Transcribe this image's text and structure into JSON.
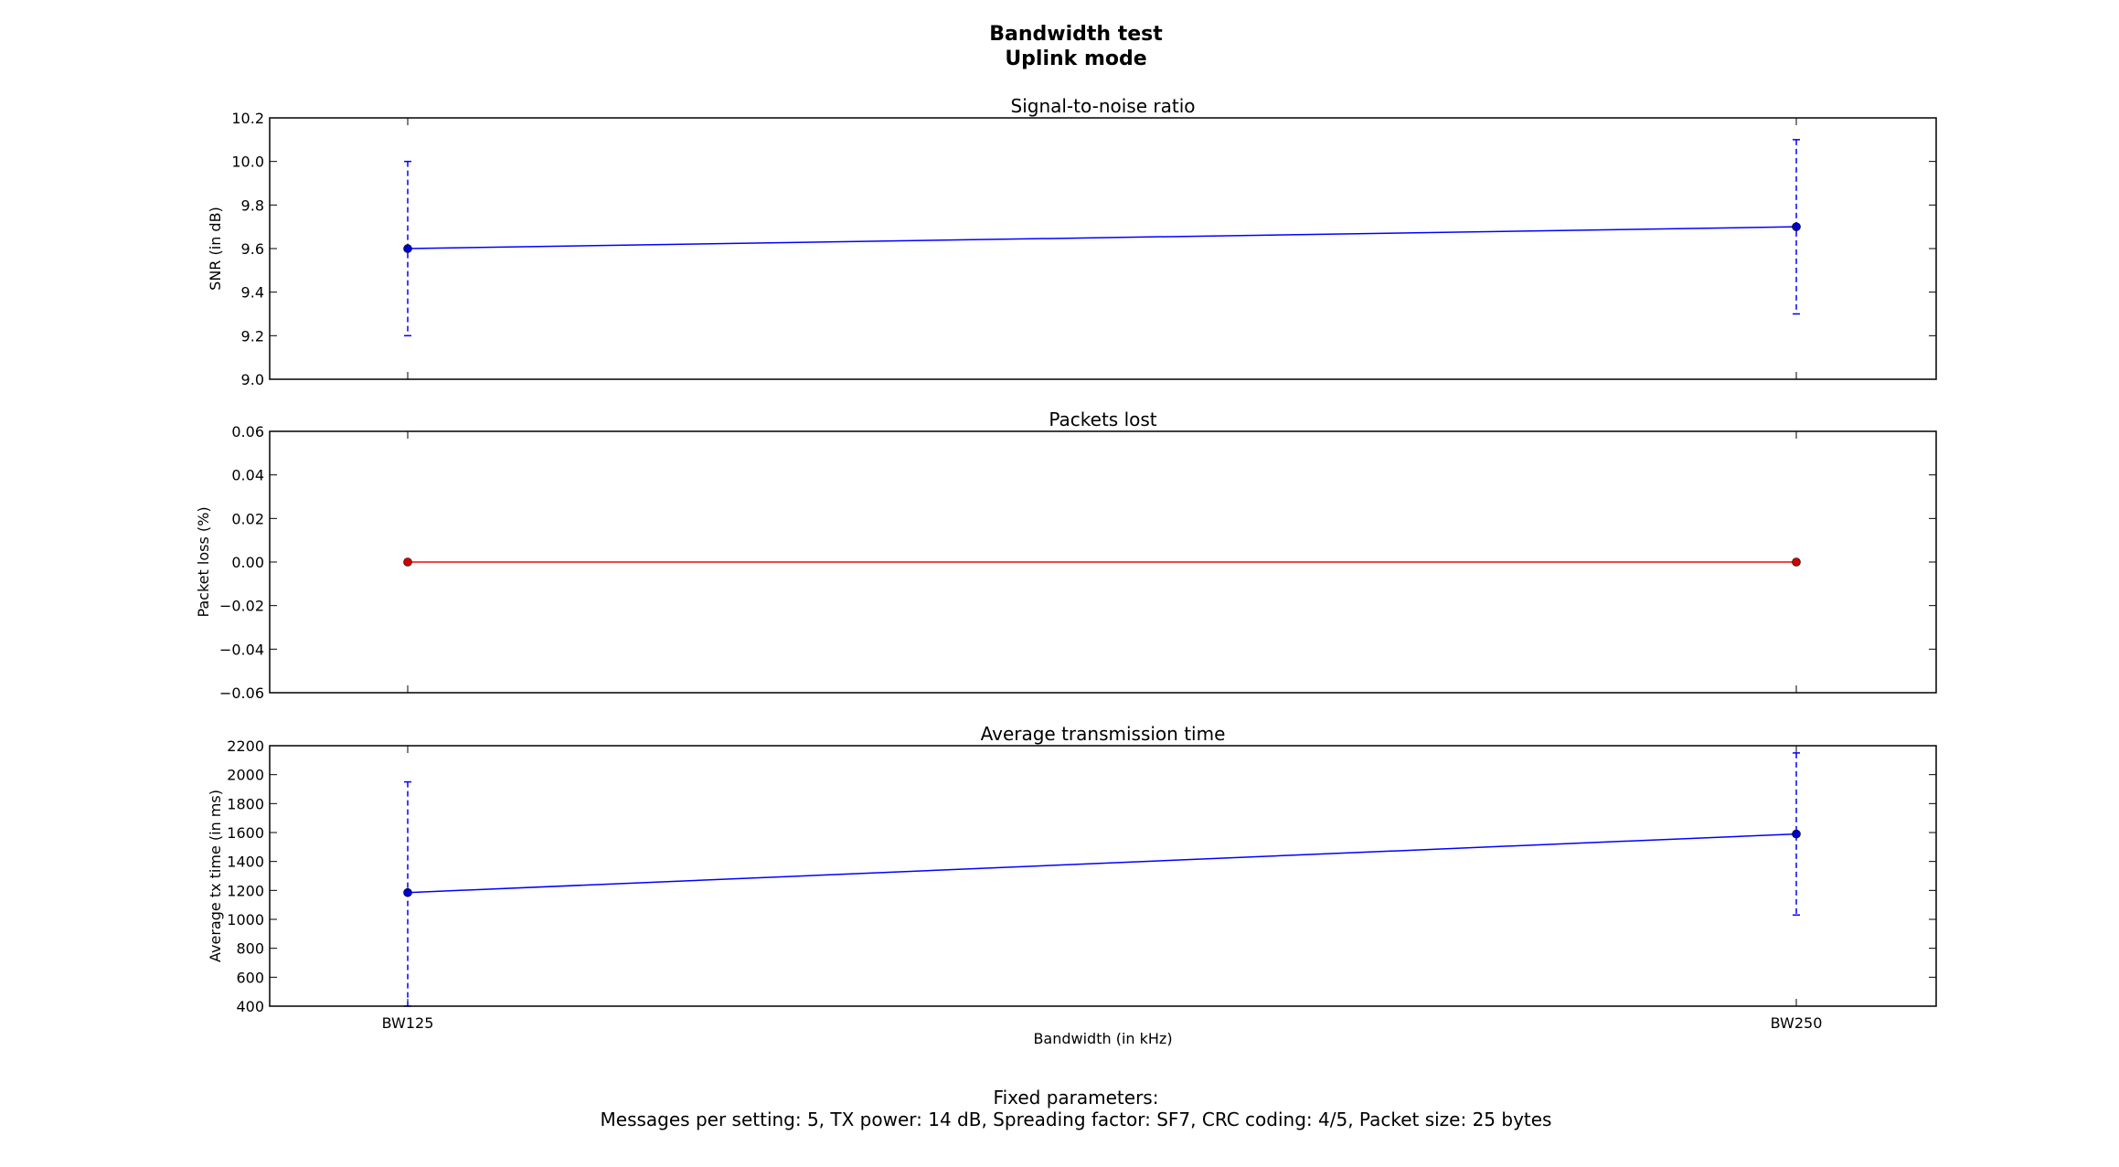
{
  "suptitle": [
    "Bandwidth test",
    "Uplink mode"
  ],
  "footer": [
    "Fixed parameters:",
    "Messages per setting: 5, TX power: 14 dB, Spreading factor: SF7, CRC coding: 4/5, Packet size: 25 bytes"
  ],
  "colors": {
    "series_blue": "#0000ff",
    "series_red": "#ff0000",
    "marker_blue": "#0000cc",
    "marker_red": "#cc0000"
  },
  "chart_data": [
    {
      "type": "line",
      "title": "Signal-to-noise ratio",
      "xlabel": "",
      "ylabel": "SNR (in dB)",
      "categories": [
        "BW125",
        "BW250"
      ],
      "show_xticklabels": false,
      "ylim": [
        9.0,
        10.2
      ],
      "yticks": [
        "9.0",
        "9.2",
        "9.4",
        "9.6",
        "9.8",
        "10.0",
        "10.2"
      ],
      "series": [
        {
          "values": [
            9.6,
            9.7
          ],
          "error_low": [
            9.2,
            9.3
          ],
          "error_high": [
            10.0,
            10.1
          ],
          "color": "#0000ff"
        }
      ]
    },
    {
      "type": "line",
      "title": "Packets lost",
      "xlabel": "",
      "ylabel": "Packet loss (%)",
      "categories": [
        "BW125",
        "BW250"
      ],
      "show_xticklabels": false,
      "ylim": [
        -0.06,
        0.06
      ],
      "yticks": [
        "−0.06",
        "−0.04",
        "−0.02",
        "0.00",
        "0.02",
        "0.04",
        "0.06"
      ],
      "series": [
        {
          "values": [
            0.0,
            0.0
          ],
          "color": "#ff0000"
        }
      ]
    },
    {
      "type": "line",
      "title": "Average transmission time",
      "xlabel": "Bandwidth (in kHz)",
      "ylabel": "Average tx time (in ms)",
      "categories": [
        "BW125",
        "BW250"
      ],
      "show_xticklabels": true,
      "ylim": [
        400,
        2200
      ],
      "yticks": [
        "400",
        "600",
        "800",
        "1000",
        "1200",
        "1400",
        "1600",
        "1800",
        "2000",
        "2200"
      ],
      "series": [
        {
          "values": [
            1185,
            1590
          ],
          "error_low": [
            400,
            1030
          ],
          "error_high": [
            1950,
            2150
          ],
          "color": "#0000ff"
        }
      ]
    }
  ]
}
